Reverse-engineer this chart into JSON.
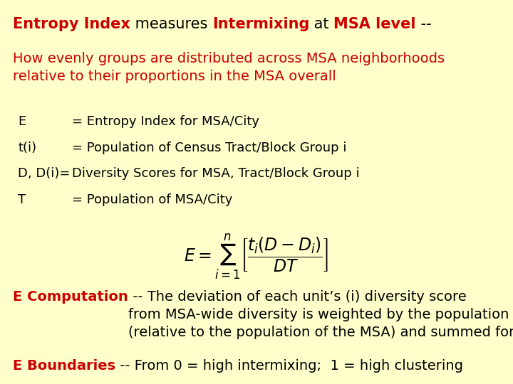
{
  "bg_color": "#ffffcc",
  "red_color": "#cc0000",
  "black_color": "#000000",
  "title_line1_parts": [
    {
      "text": "Entropy Index",
      "bold": true,
      "color": "#cc0000"
    },
    {
      "text": " measures ",
      "bold": false,
      "color": "#000000"
    },
    {
      "text": "Intermixing",
      "bold": true,
      "color": "#cc0000"
    },
    {
      "text": " at ",
      "bold": false,
      "color": "#000000"
    },
    {
      "text": "MSA level",
      "bold": true,
      "color": "#cc0000"
    },
    {
      "text": " --",
      "bold": false,
      "color": "#000000"
    }
  ],
  "subtitle": "How evenly groups are distributed across MSA neighborhoods\nrelative to their proportions in the MSA overall",
  "definitions": [
    {
      "label": "E",
      "text": "= Entropy Index for MSA/City"
    },
    {
      "label": "t(i)",
      "text": "= Population of Census Tract/Block Group i"
    },
    {
      "label": "D, D(i)=",
      "text": "Diversity Scores for MSA, Tract/Block Group i"
    },
    {
      "label": "T",
      "text": "= Population of MSA/City"
    }
  ],
  "formula": "$E = \\sum_{i=1}^{n} \\left[ \\dfrac{t_i(D - D_i)}{DT} \\right]$",
  "computation_parts": [
    {
      "text": "E Computation",
      "bold": true,
      "color": "#cc0000"
    },
    {
      "text": " -- The deviation of each unit’s (i) diversity score\nfrom MSA-wide diversity is weighted by the population of i\n(relative to the population of the MSA) and summed for all i",
      "bold": false,
      "color": "#000000"
    }
  ],
  "boundaries_parts": [
    {
      "text": "E Boundaries",
      "bold": true,
      "color": "#cc0000"
    },
    {
      "text": " -- From 0 = high intermixing;  1 = high clustering",
      "bold": false,
      "color": "#000000"
    }
  ],
  "font_size_title": 15,
  "font_size_subtitle": 14,
  "font_size_def": 13,
  "font_size_formula": 17,
  "font_size_comp": 14,
  "font_size_bound": 14
}
